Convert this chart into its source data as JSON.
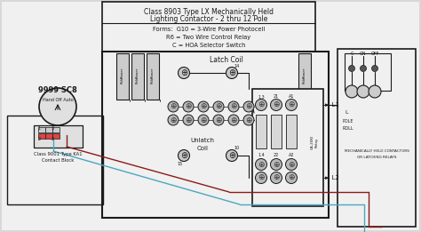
{
  "bg_color": "#d8d8d8",
  "diagram_bg": "#f0f0f0",
  "inner_bg": "#e8e8e8",
  "title_box_text1": "Class 8903 Type LX Mechanically Held",
  "title_box_text2": "Lighting Contactor - 2 thru 12 Pole",
  "forms_text1": "Forms:  G10 = 3-Wire Power Photocell",
  "forms_text2": "R6 = Two Wire Control Relay",
  "forms_text3": "C = HOA Selector Switch",
  "label_9999": "9999 SC8",
  "label_hand": "Hand Off Auto",
  "label_class9001": "Class 9001 Type KA1",
  "label_contact": "Contact Block",
  "label_latch": "Latch Coil",
  "label_unlatch": "Unlatch\nCoil",
  "label_L1": "► L1",
  "label_L2": "► L2",
  "wire_color_red": "#8B1A1A",
  "wire_color_blue": "#4aa8c0",
  "wire_color_teal": "#4aa8c0",
  "wire_color_dark": "#1a1a1a",
  "wire_color_brown": "#8B4513",
  "box_color": "#1a1a1a",
  "figsize": [
    4.74,
    2.61
  ],
  "dpi": 100
}
